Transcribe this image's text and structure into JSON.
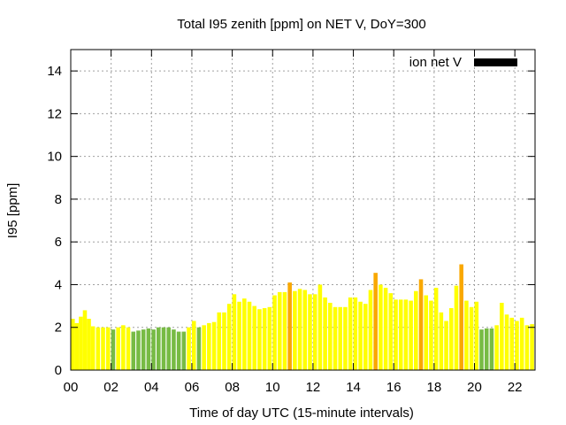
{
  "chart_data": {
    "type": "bar",
    "title": "Total I95 zenith [ppm] on NET V, DoY=300",
    "xlabel": "Time of day UTC (15-minute intervals)",
    "ylabel": "I95 [ppm]",
    "ylim": [
      0,
      15
    ],
    "yticks": [
      "0",
      "2",
      "4",
      "6",
      "8",
      "10",
      "12",
      "14"
    ],
    "xlim": [
      0,
      23
    ],
    "xticks": [
      "00",
      "02",
      "04",
      "06",
      "08",
      "10",
      "12",
      "14",
      "16",
      "18",
      "20",
      "22"
    ],
    "grid": true,
    "legend": {
      "label": "ion net V",
      "color": "#000000",
      "placement": "top-right"
    },
    "bar_width_hours": 0.2,
    "colors": {
      "yellow": "#ffff00",
      "green": "#77bb44",
      "orange": "#f9a800"
    },
    "bars": [
      {
        "x": 0.1,
        "y": 2.4,
        "c": "yellow"
      },
      {
        "x": 0.3,
        "y": 2.2,
        "c": "yellow"
      },
      {
        "x": 0.5,
        "y": 2.5,
        "c": "yellow"
      },
      {
        "x": 0.7,
        "y": 2.8,
        "c": "yellow"
      },
      {
        "x": 0.9,
        "y": 2.4,
        "c": "yellow"
      },
      {
        "x": 1.1,
        "y": 2.05,
        "c": "yellow"
      },
      {
        "x": 1.35,
        "y": 2.0,
        "c": "yellow"
      },
      {
        "x": 1.6,
        "y": 2.0,
        "c": "yellow"
      },
      {
        "x": 1.85,
        "y": 2.0,
        "c": "yellow"
      },
      {
        "x": 2.1,
        "y": 1.9,
        "c": "green"
      },
      {
        "x": 2.35,
        "y": 2.0,
        "c": "yellow"
      },
      {
        "x": 2.6,
        "y": 2.1,
        "c": "yellow"
      },
      {
        "x": 2.85,
        "y": 2.0,
        "c": "yellow"
      },
      {
        "x": 3.1,
        "y": 1.8,
        "c": "green"
      },
      {
        "x": 3.35,
        "y": 1.85,
        "c": "green"
      },
      {
        "x": 3.6,
        "y": 1.9,
        "c": "green"
      },
      {
        "x": 3.85,
        "y": 1.95,
        "c": "green"
      },
      {
        "x": 4.1,
        "y": 1.9,
        "c": "green"
      },
      {
        "x": 4.35,
        "y": 2.0,
        "c": "green"
      },
      {
        "x": 4.6,
        "y": 2.0,
        "c": "green"
      },
      {
        "x": 4.85,
        "y": 2.0,
        "c": "green"
      },
      {
        "x": 5.1,
        "y": 1.9,
        "c": "green"
      },
      {
        "x": 5.35,
        "y": 1.8,
        "c": "green"
      },
      {
        "x": 5.6,
        "y": 1.8,
        "c": "green"
      },
      {
        "x": 5.85,
        "y": 2.0,
        "c": "yellow"
      },
      {
        "x": 6.1,
        "y": 2.3,
        "c": "yellow"
      },
      {
        "x": 6.35,
        "y": 2.0,
        "c": "green"
      },
      {
        "x": 6.6,
        "y": 2.1,
        "c": "yellow"
      },
      {
        "x": 6.85,
        "y": 2.2,
        "c": "yellow"
      },
      {
        "x": 7.1,
        "y": 2.25,
        "c": "yellow"
      },
      {
        "x": 7.35,
        "y": 2.7,
        "c": "yellow"
      },
      {
        "x": 7.6,
        "y": 2.7,
        "c": "yellow"
      },
      {
        "x": 7.85,
        "y": 3.1,
        "c": "yellow"
      },
      {
        "x": 8.1,
        "y": 3.55,
        "c": "yellow"
      },
      {
        "x": 8.35,
        "y": 3.2,
        "c": "yellow"
      },
      {
        "x": 8.6,
        "y": 3.35,
        "c": "yellow"
      },
      {
        "x": 8.85,
        "y": 3.2,
        "c": "yellow"
      },
      {
        "x": 9.1,
        "y": 3.0,
        "c": "yellow"
      },
      {
        "x": 9.35,
        "y": 2.85,
        "c": "yellow"
      },
      {
        "x": 9.6,
        "y": 2.9,
        "c": "yellow"
      },
      {
        "x": 9.85,
        "y": 2.95,
        "c": "yellow"
      },
      {
        "x": 10.1,
        "y": 3.5,
        "c": "yellow"
      },
      {
        "x": 10.35,
        "y": 3.65,
        "c": "yellow"
      },
      {
        "x": 10.6,
        "y": 3.65,
        "c": "yellow"
      },
      {
        "x": 10.85,
        "y": 4.1,
        "c": "orange"
      },
      {
        "x": 11.1,
        "y": 3.7,
        "c": "yellow"
      },
      {
        "x": 11.35,
        "y": 3.8,
        "c": "yellow"
      },
      {
        "x": 11.6,
        "y": 3.75,
        "c": "yellow"
      },
      {
        "x": 11.85,
        "y": 3.55,
        "c": "yellow"
      },
      {
        "x": 12.1,
        "y": 3.55,
        "c": "yellow"
      },
      {
        "x": 12.35,
        "y": 4.0,
        "c": "yellow"
      },
      {
        "x": 12.6,
        "y": 3.4,
        "c": "yellow"
      },
      {
        "x": 12.85,
        "y": 3.15,
        "c": "yellow"
      },
      {
        "x": 13.1,
        "y": 2.95,
        "c": "yellow"
      },
      {
        "x": 13.35,
        "y": 2.95,
        "c": "yellow"
      },
      {
        "x": 13.6,
        "y": 2.95,
        "c": "yellow"
      },
      {
        "x": 13.85,
        "y": 3.4,
        "c": "yellow"
      },
      {
        "x": 14.1,
        "y": 3.4,
        "c": "yellow"
      },
      {
        "x": 14.35,
        "y": 3.2,
        "c": "yellow"
      },
      {
        "x": 14.6,
        "y": 3.1,
        "c": "yellow"
      },
      {
        "x": 14.85,
        "y": 3.75,
        "c": "yellow"
      },
      {
        "x": 15.1,
        "y": 4.55,
        "c": "orange"
      },
      {
        "x": 15.35,
        "y": 4.0,
        "c": "yellow"
      },
      {
        "x": 15.6,
        "y": 3.85,
        "c": "yellow"
      },
      {
        "x": 15.85,
        "y": 3.6,
        "c": "yellow"
      },
      {
        "x": 16.1,
        "y": 3.3,
        "c": "yellow"
      },
      {
        "x": 16.35,
        "y": 3.3,
        "c": "yellow"
      },
      {
        "x": 16.6,
        "y": 3.3,
        "c": "yellow"
      },
      {
        "x": 16.85,
        "y": 3.25,
        "c": "yellow"
      },
      {
        "x": 17.1,
        "y": 3.7,
        "c": "yellow"
      },
      {
        "x": 17.35,
        "y": 4.25,
        "c": "orange"
      },
      {
        "x": 17.6,
        "y": 3.5,
        "c": "yellow"
      },
      {
        "x": 17.85,
        "y": 3.25,
        "c": "yellow"
      },
      {
        "x": 18.1,
        "y": 3.85,
        "c": "yellow"
      },
      {
        "x": 18.35,
        "y": 2.7,
        "c": "yellow"
      },
      {
        "x": 18.6,
        "y": 2.3,
        "c": "yellow"
      },
      {
        "x": 18.85,
        "y": 2.9,
        "c": "yellow"
      },
      {
        "x": 19.1,
        "y": 3.95,
        "c": "yellow"
      },
      {
        "x": 19.35,
        "y": 4.95,
        "c": "orange"
      },
      {
        "x": 19.6,
        "y": 3.25,
        "c": "yellow"
      },
      {
        "x": 19.85,
        "y": 2.95,
        "c": "yellow"
      },
      {
        "x": 20.1,
        "y": 3.2,
        "c": "yellow"
      },
      {
        "x": 20.35,
        "y": 1.9,
        "c": "green"
      },
      {
        "x": 20.6,
        "y": 1.95,
        "c": "green"
      },
      {
        "x": 20.85,
        "y": 1.95,
        "c": "green"
      },
      {
        "x": 21.1,
        "y": 2.1,
        "c": "yellow"
      },
      {
        "x": 21.35,
        "y": 3.15,
        "c": "yellow"
      },
      {
        "x": 21.6,
        "y": 2.6,
        "c": "yellow"
      },
      {
        "x": 21.85,
        "y": 2.45,
        "c": "yellow"
      },
      {
        "x": 22.1,
        "y": 2.3,
        "c": "yellow"
      },
      {
        "x": 22.35,
        "y": 2.45,
        "c": "yellow"
      },
      {
        "x": 22.6,
        "y": 2.1,
        "c": "yellow"
      },
      {
        "x": 22.85,
        "y": 2.15,
        "c": "yellow"
      }
    ]
  }
}
